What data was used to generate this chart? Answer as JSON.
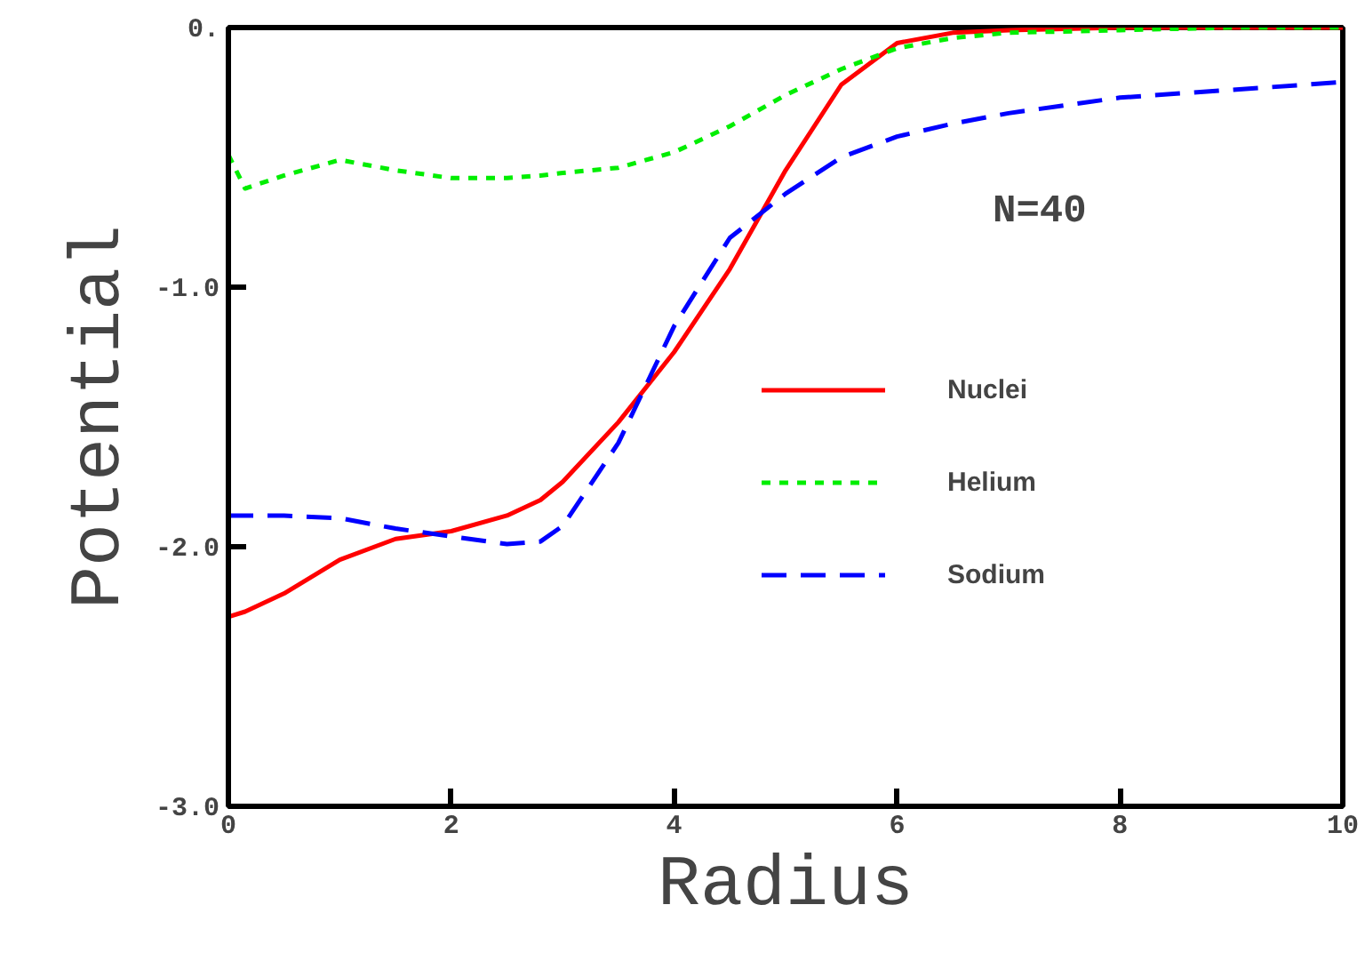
{
  "chart_data": {
    "type": "line",
    "xlabel": "Radius",
    "ylabel": "Potential",
    "xlim": [
      0,
      10
    ],
    "ylim": [
      -3,
      0
    ],
    "xticks": [
      0,
      2,
      4,
      6,
      8,
      10
    ],
    "yticks": [
      {
        "value": 0,
        "label": "0."
      },
      {
        "value": -1,
        "label": "-1.0"
      },
      {
        "value": -2,
        "label": "-2.0"
      },
      {
        "value": -3,
        "label": "-3.0"
      }
    ],
    "grid": false,
    "legend": "right",
    "annotations": [
      "N=40"
    ],
    "x": [
      0,
      0.15,
      0.5,
      1,
      1.5,
      2,
      2.5,
      2.8,
      3,
      3.5,
      4,
      4.5,
      5,
      5.5,
      6,
      6.5,
      7,
      8,
      9,
      10
    ],
    "series": [
      {
        "name": "Nuclei",
        "color": "#ff0000",
        "line_style": "solid",
        "values": [
          -2.27,
          -2.25,
          -2.18,
          -2.05,
          -1.97,
          -1.94,
          -1.88,
          -1.82,
          -1.75,
          -1.52,
          -1.25,
          -0.93,
          -0.55,
          -0.22,
          -0.06,
          -0.02,
          -0.01,
          0,
          0,
          0
        ]
      },
      {
        "name": "Helium",
        "color": "#00ee00",
        "line_style": "dotted",
        "values": [
          -0.49,
          -0.62,
          -0.57,
          -0.51,
          -0.55,
          -0.58,
          -0.58,
          -0.57,
          -0.56,
          -0.54,
          -0.48,
          -0.38,
          -0.26,
          -0.16,
          -0.08,
          -0.04,
          -0.02,
          -0.01,
          0,
          0
        ]
      },
      {
        "name": "Sodium",
        "color": "#0000ff",
        "line_style": "dashed",
        "values": [
          -1.88,
          -1.88,
          -1.88,
          -1.89,
          -1.93,
          -1.96,
          -1.99,
          -1.98,
          -1.92,
          -1.6,
          -1.15,
          -0.81,
          -0.64,
          -0.5,
          -0.42,
          -0.37,
          -0.33,
          -0.27,
          -0.24,
          -0.21
        ]
      }
    ]
  }
}
